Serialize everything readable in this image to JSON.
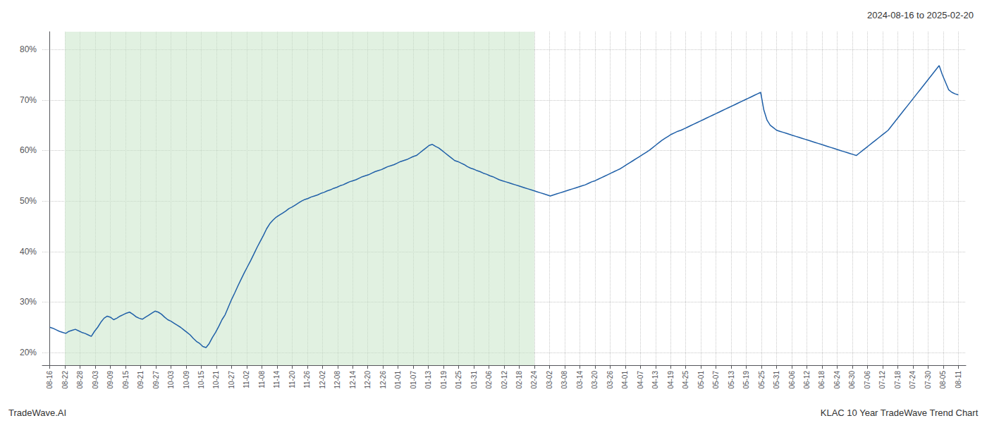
{
  "chart_data": {
    "type": "line",
    "title": "2024-08-16 to 2025-02-20",
    "annotations": [
      "TradeWave.AI",
      "KLAC 10 Year TradeWave Trend Chart"
    ],
    "color": "#2060a8",
    "grid": true,
    "shaded_range": [
      4.75,
      152
    ],
    "shade_color": "#c8e6c9",
    "xlim": [
      -2.375,
      287.375
    ],
    "xticks": [
      {
        "value": 0,
        "label": "08-16"
      },
      {
        "value": 4.75,
        "label": "08-22"
      },
      {
        "value": 9.5,
        "label": "08-28"
      },
      {
        "value": 14.25,
        "label": "09-03"
      },
      {
        "value": 19,
        "label": "09-09"
      },
      {
        "value": 23.75,
        "label": "09-15"
      },
      {
        "value": 28.5,
        "label": "09-21"
      },
      {
        "value": 33.25,
        "label": "09-27"
      },
      {
        "value": 38,
        "label": "10-03"
      },
      {
        "value": 42.75,
        "label": "10-09"
      },
      {
        "value": 47.5,
        "label": "10-15"
      },
      {
        "value": 52.25,
        "label": "10-21"
      },
      {
        "value": 57,
        "label": "10-27"
      },
      {
        "value": 61.75,
        "label": "11-02"
      },
      {
        "value": 66.5,
        "label": "11-08"
      },
      {
        "value": 71.25,
        "label": "11-14"
      },
      {
        "value": 76,
        "label": "11-20"
      },
      {
        "value": 80.75,
        "label": "11-26"
      },
      {
        "value": 85.5,
        "label": "12-02"
      },
      {
        "value": 90.25,
        "label": "12-08"
      },
      {
        "value": 95,
        "label": "12-14"
      },
      {
        "value": 99.75,
        "label": "12-20"
      },
      {
        "value": 104.5,
        "label": "12-26"
      },
      {
        "value": 109.25,
        "label": "01-01"
      },
      {
        "value": 114,
        "label": "01-07"
      },
      {
        "value": 118.75,
        "label": "01-13"
      },
      {
        "value": 123.5,
        "label": "01-19"
      },
      {
        "value": 128.25,
        "label": "01-25"
      },
      {
        "value": 133,
        "label": "01-31"
      },
      {
        "value": 137.75,
        "label": "02-06"
      },
      {
        "value": 142.5,
        "label": "02-12"
      },
      {
        "value": 147.25,
        "label": "02-18"
      },
      {
        "value": 152,
        "label": "02-24"
      },
      {
        "value": 156.75,
        "label": "03-02"
      },
      {
        "value": 161.5,
        "label": "03-08"
      },
      {
        "value": 166.25,
        "label": "03-14"
      },
      {
        "value": 171,
        "label": "03-20"
      },
      {
        "value": 175.75,
        "label": "03-26"
      },
      {
        "value": 180.5,
        "label": "04-01"
      },
      {
        "value": 185.25,
        "label": "04-07"
      },
      {
        "value": 190,
        "label": "04-13"
      },
      {
        "value": 194.75,
        "label": "04-19"
      },
      {
        "value": 199.5,
        "label": "04-25"
      },
      {
        "value": 204.25,
        "label": "05-01"
      },
      {
        "value": 209,
        "label": "05-07"
      },
      {
        "value": 213.75,
        "label": "05-13"
      },
      {
        "value": 218.5,
        "label": "05-19"
      },
      {
        "value": 223.25,
        "label": "05-25"
      },
      {
        "value": 228,
        "label": "05-31"
      },
      {
        "value": 232.75,
        "label": "06-06"
      },
      {
        "value": 237.5,
        "label": "06-12"
      },
      {
        "value": 242.25,
        "label": "06-18"
      },
      {
        "value": 247,
        "label": "06-24"
      },
      {
        "value": 251.75,
        "label": "06-30"
      },
      {
        "value": 256.5,
        "label": "07-06"
      },
      {
        "value": 261.25,
        "label": "07-12"
      },
      {
        "value": 266,
        "label": "07-18"
      },
      {
        "value": 270.75,
        "label": "07-24"
      },
      {
        "value": 275.5,
        "label": "07-30"
      },
      {
        "value": 280.25,
        "label": "08-05"
      },
      {
        "value": 285,
        "label": "08-11"
      }
    ],
    "ylim": [
      0.175,
      0.835
    ],
    "yticks": [
      {
        "value": 0.2,
        "label": "20%"
      },
      {
        "value": 0.3,
        "label": "30%"
      },
      {
        "value": 0.4,
        "label": "40%"
      },
      {
        "value": 0.5,
        "label": "50%"
      },
      {
        "value": 0.6,
        "label": "60%"
      },
      {
        "value": 0.7,
        "label": "70%"
      },
      {
        "value": 0.8,
        "label": "80%"
      }
    ],
    "x": [
      0,
      1,
      2,
      3,
      4,
      5,
      6,
      7,
      8,
      9,
      10,
      11,
      12,
      13,
      14,
      15,
      16,
      17,
      18,
      19,
      20,
      21,
      22,
      23,
      24,
      25,
      26,
      27,
      28,
      29,
      30,
      31,
      32,
      33,
      34,
      35,
      36,
      37,
      38,
      39,
      40,
      41,
      42,
      43,
      44,
      45,
      46,
      47,
      48,
      49,
      50,
      51,
      52,
      53,
      54,
      55,
      56,
      57,
      58,
      59,
      60,
      61,
      62,
      63,
      64,
      65,
      66,
      67,
      68,
      69,
      70,
      71,
      72,
      73,
      74,
      75,
      76,
      77,
      78,
      79,
      80,
      81,
      82,
      83,
      84,
      85,
      86,
      87,
      88,
      89,
      90,
      91,
      92,
      93,
      94,
      95,
      96,
      97,
      98,
      99,
      100,
      101,
      102,
      103,
      104,
      105,
      106,
      107,
      108,
      109,
      110,
      111,
      112,
      113,
      114,
      115,
      116,
      117,
      118,
      119,
      120,
      121,
      122,
      123,
      124,
      125,
      126,
      127,
      128,
      129,
      130,
      131,
      132,
      133,
      134,
      135,
      136,
      137,
      138,
      139,
      140,
      141,
      142,
      143,
      144,
      145,
      146,
      147,
      148,
      149,
      150,
      151,
      152,
      153,
      154,
      155,
      156,
      157,
      158,
      159,
      160,
      161,
      162,
      163,
      164,
      165,
      166,
      167,
      168,
      169,
      170,
      171,
      172,
      173,
      174,
      175,
      176,
      177,
      178,
      179,
      180,
      181,
      182,
      183,
      184,
      185,
      186,
      187,
      188,
      189,
      190,
      191,
      192,
      193,
      194,
      195,
      196,
      197,
      198,
      199,
      200,
      201,
      202,
      203,
      204,
      205,
      206,
      207,
      208,
      209,
      210,
      211,
      212,
      213,
      214,
      215,
      216,
      217,
      218,
      219,
      220,
      221,
      222,
      223,
      224,
      225,
      226,
      227,
      228,
      229,
      230,
      231,
      232,
      233,
      234,
      235,
      236,
      237,
      238,
      239,
      240,
      241,
      242,
      243,
      244,
      245,
      246,
      247,
      248,
      249,
      250,
      251,
      252,
      253,
      254,
      255,
      256,
      257,
      258,
      259,
      260,
      261,
      262,
      263,
      264,
      265,
      266,
      267,
      268,
      269,
      270,
      271,
      272,
      273,
      274,
      275,
      276,
      277,
      278,
      279,
      280,
      281,
      282,
      283,
      284,
      285
    ],
    "values": [
      0.25,
      0.248,
      0.245,
      0.242,
      0.24,
      0.238,
      0.242,
      0.244,
      0.246,
      0.243,
      0.24,
      0.238,
      0.235,
      0.232,
      0.242,
      0.25,
      0.26,
      0.268,
      0.272,
      0.27,
      0.265,
      0.268,
      0.272,
      0.275,
      0.278,
      0.28,
      0.276,
      0.271,
      0.268,
      0.266,
      0.27,
      0.274,
      0.278,
      0.282,
      0.28,
      0.276,
      0.27,
      0.265,
      0.262,
      0.258,
      0.254,
      0.25,
      0.245,
      0.24,
      0.235,
      0.228,
      0.222,
      0.218,
      0.212,
      0.21,
      0.218,
      0.23,
      0.24,
      0.252,
      0.265,
      0.275,
      0.29,
      0.305,
      0.318,
      0.332,
      0.345,
      0.358,
      0.37,
      0.382,
      0.395,
      0.408,
      0.42,
      0.432,
      0.445,
      0.455,
      0.462,
      0.468,
      0.472,
      0.476,
      0.48,
      0.485,
      0.488,
      0.492,
      0.496,
      0.5,
      0.503,
      0.505,
      0.508,
      0.51,
      0.512,
      0.515,
      0.517,
      0.52,
      0.522,
      0.525,
      0.527,
      0.53,
      0.532,
      0.535,
      0.538,
      0.54,
      0.542,
      0.545,
      0.548,
      0.55,
      0.552,
      0.555,
      0.558,
      0.56,
      0.562,
      0.565,
      0.568,
      0.57,
      0.572,
      0.575,
      0.578,
      0.58,
      0.582,
      0.585,
      0.588,
      0.59,
      0.595,
      0.6,
      0.605,
      0.61,
      0.612,
      0.608,
      0.605,
      0.6,
      0.595,
      0.59,
      0.585,
      0.58,
      0.578,
      0.575,
      0.572,
      0.568,
      0.565,
      0.563,
      0.56,
      0.558,
      0.555,
      0.553,
      0.55,
      0.548,
      0.545,
      0.542,
      0.54,
      0.538,
      0.536,
      0.534,
      0.532,
      0.53,
      0.528,
      0.526,
      0.524,
      0.522,
      0.52,
      0.518,
      0.516,
      0.514,
      0.512,
      0.51,
      0.512,
      0.514,
      0.516,
      0.518,
      0.52,
      0.522,
      0.524,
      0.526,
      0.528,
      0.53,
      0.532,
      0.535,
      0.538,
      0.54,
      0.543,
      0.546,
      0.549,
      0.552,
      0.555,
      0.558,
      0.561,
      0.564,
      0.568,
      0.572,
      0.576,
      0.58,
      0.584,
      0.588,
      0.592,
      0.596,
      0.6,
      0.605,
      0.61,
      0.615,
      0.62,
      0.624,
      0.628,
      0.632,
      0.635,
      0.638,
      0.64,
      0.643,
      0.646,
      0.649,
      0.652,
      0.655,
      0.658,
      0.661,
      0.664,
      0.667,
      0.67,
      0.673,
      0.676,
      0.679,
      0.682,
      0.685,
      0.688,
      0.691,
      0.694,
      0.697,
      0.7,
      0.703,
      0.706,
      0.709,
      0.712,
      0.715,
      0.68,
      0.66,
      0.65,
      0.645,
      0.64,
      0.638,
      0.636,
      0.634,
      0.632,
      0.63,
      0.628,
      0.626,
      0.624,
      0.622,
      0.62,
      0.618,
      0.616,
      0.614,
      0.612,
      0.61,
      0.608,
      0.606,
      0.604,
      0.602,
      0.6,
      0.598,
      0.596,
      0.594,
      0.592,
      0.59,
      0.595,
      0.6,
      0.605,
      0.61,
      0.615,
      0.62,
      0.625,
      0.63,
      0.635,
      0.64,
      0.648,
      0.656,
      0.664,
      0.672,
      0.68,
      0.688,
      0.696,
      0.704,
      0.712,
      0.72,
      0.728,
      0.736,
      0.744,
      0.752,
      0.76,
      0.768,
      0.75,
      0.735,
      0.72,
      0.715,
      0.712,
      0.71
    ]
  }
}
